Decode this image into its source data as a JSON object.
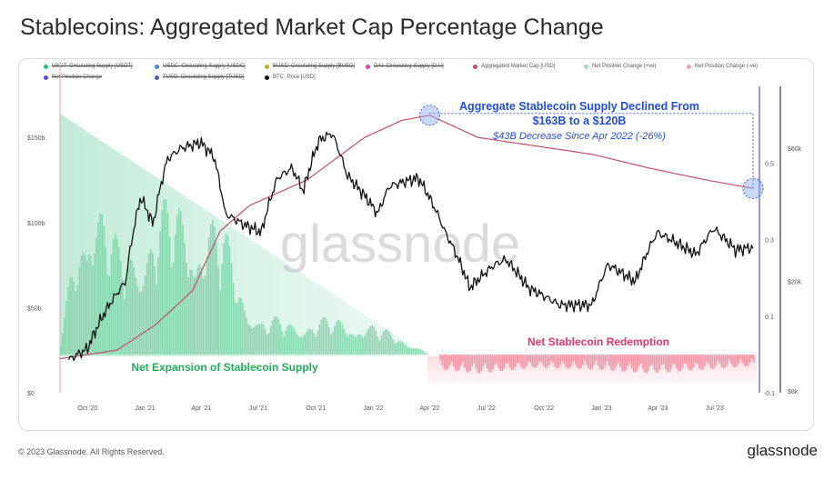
{
  "page": {
    "title": "Stablecoins: Aggregated Market Cap Percentage Change",
    "copyright": "© 2023 Glassnode. All Rights Reserved.",
    "logo": "glassnode",
    "watermark": "glassnode"
  },
  "legend": [
    {
      "label": "USDT: Circulating Supply [USDT]",
      "color": "#2fbf7a",
      "struck": true
    },
    {
      "label": "USDC: Circulating Supply [USDC]",
      "color": "#4a7fe0",
      "struck": true
    },
    {
      "label": "BUSD: Circulating Supply [BUSD]",
      "color": "#d4a520",
      "struck": true
    },
    {
      "label": "DAI: Circulating Supply [DAI]",
      "color": "#c24fbf",
      "struck": true
    },
    {
      "label": "Aggregated Market Cap [USD]",
      "color": "#c0506a",
      "struck": false
    },
    {
      "label": "Net Position Change (+ve)",
      "color": "#9fdcbc",
      "struck": false
    },
    {
      "label": "Net Position Change (-ve)",
      "color": "#f2a0ae",
      "struck": false
    },
    {
      "label": "Net Position Change",
      "color": "#5a4fcf",
      "struck": true
    },
    {
      "label": "TUSD: Circulating Supply [TUSD]",
      "color": "#4a5fa0",
      "struck": true
    },
    {
      "label": "BTC: Price [USD]",
      "color": "#111111",
      "struck": false
    }
  ],
  "annotations": {
    "headline_1": "Aggregate Stablecoin Supply Declined From",
    "headline_2": "$163B to a $120B",
    "subline": "$43B Decrease Since Apr 2022 (-26%)",
    "redemption": "Net Stablecoin Redemption",
    "expansion": "Net Expansion of Stablecoin Supply"
  },
  "colors": {
    "annotation_blue": "#1f4fd8",
    "redemption_pink": "#e8336b",
    "expansion_green": "#1fae5a",
    "net_line": "#5a4fcf"
  },
  "chart_data": {
    "type": "line",
    "x_tick_labels": [
      "Oct '20",
      "Jan '21",
      "Apr '21",
      "Jul '21",
      "Oct '21",
      "Jan '22",
      "Apr '22",
      "Jul '22",
      "Oct '22",
      "Jan '23",
      "Apr '23",
      "Jul '23"
    ],
    "x_range": [
      "2020-09-01",
      "2023-09-20"
    ],
    "y_left_ticks": [
      "$0",
      "$50b",
      "$100b",
      "$150b"
    ],
    "y_left_range": [
      0,
      180
    ],
    "y_mid_ticks": [
      "0.5",
      "0.3",
      "0.1",
      "-0.1"
    ],
    "y_mid_range": [
      -0.1,
      0.7
    ],
    "y_right_ticks": [
      "$60k",
      "$20k",
      "$8k"
    ],
    "btc_price_usd": [
      [
        "2020-09-15",
        10500
      ],
      [
        "2020-10-15",
        11500
      ],
      [
        "2020-11-15",
        16000
      ],
      [
        "2020-12-15",
        20000
      ],
      [
        "2021-01-08",
        40000
      ],
      [
        "2021-01-28",
        32000
      ],
      [
        "2021-02-20",
        55000
      ],
      [
        "2021-03-13",
        60000
      ],
      [
        "2021-04-14",
        63000
      ],
      [
        "2021-05-05",
        56000
      ],
      [
        "2021-05-23",
        35000
      ],
      [
        "2021-06-22",
        32000
      ],
      [
        "2021-07-20",
        30000
      ],
      [
        "2021-08-15",
        47000
      ],
      [
        "2021-09-07",
        51000
      ],
      [
        "2021-09-25",
        42000
      ],
      [
        "2021-10-20",
        64000
      ],
      [
        "2021-11-10",
        68000
      ],
      [
        "2021-12-04",
        48000
      ],
      [
        "2022-01-22",
        35000
      ],
      [
        "2022-02-10",
        44000
      ],
      [
        "2022-03-28",
        47000
      ],
      [
        "2022-05-10",
        30000
      ],
      [
        "2022-06-18",
        19000
      ],
      [
        "2022-07-28",
        23000
      ],
      [
        "2022-08-15",
        24000
      ],
      [
        "2022-09-20",
        19000
      ],
      [
        "2022-11-09",
        16500
      ],
      [
        "2022-12-31",
        16500
      ],
      [
        "2023-01-25",
        23000
      ],
      [
        "2023-03-10",
        20000
      ],
      [
        "2023-04-14",
        30000
      ],
      [
        "2023-06-15",
        25000
      ],
      [
        "2023-07-13",
        31000
      ],
      [
        "2023-08-17",
        26000
      ],
      [
        "2023-09-15",
        26500
      ]
    ],
    "aggregated_market_cap_usd_b": [
      [
        "2020-09-01",
        20
      ],
      [
        "2020-12-01",
        25
      ],
      [
        "2021-02-01",
        40
      ],
      [
        "2021-04-01",
        60
      ],
      [
        "2021-05-15",
        95
      ],
      [
        "2021-07-01",
        110
      ],
      [
        "2021-10-01",
        125
      ],
      [
        "2022-01-01",
        150
      ],
      [
        "2022-03-01",
        160
      ],
      [
        "2022-04-15",
        163
      ],
      [
        "2022-05-15",
        158
      ],
      [
        "2022-07-01",
        150
      ],
      [
        "2022-10-01",
        145
      ],
      [
        "2023-01-01",
        140
      ],
      [
        "2023-04-01",
        132
      ],
      [
        "2023-07-01",
        125
      ],
      [
        "2023-09-15",
        120
      ]
    ],
    "net_position_change_positive": [
      [
        "2020-09-01",
        0.05
      ],
      [
        "2020-10-15",
        0.55
      ],
      [
        "2020-12-01",
        0.3
      ],
      [
        "2021-02-01",
        0.4
      ],
      [
        "2021-03-20",
        0.45
      ],
      [
        "2021-05-20",
        0.35
      ],
      [
        "2021-07-15",
        0.1
      ],
      [
        "2021-10-01",
        0.1
      ],
      [
        "2021-12-20",
        0.1
      ],
      [
        "2022-03-01",
        0.05
      ],
      [
        "2022-04-15",
        0.0
      ]
    ],
    "net_position_change_negative": [
      [
        "2022-05-01",
        -0.04
      ],
      [
        "2022-07-01",
        -0.05
      ],
      [
        "2022-10-01",
        -0.035
      ],
      [
        "2023-01-01",
        -0.04
      ],
      [
        "2023-04-01",
        -0.05
      ],
      [
        "2023-07-01",
        -0.04
      ],
      [
        "2023-09-15",
        -0.03
      ]
    ]
  }
}
